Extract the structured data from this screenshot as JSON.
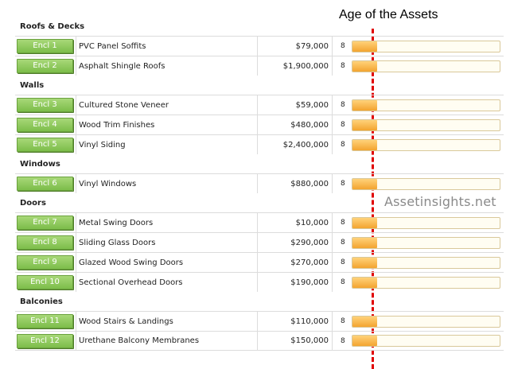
{
  "header": {
    "title": "Age of the Assets"
  },
  "watermark": "Assetinsights.net",
  "colors": {
    "button": "#7cbd4a",
    "bar": "#f3a430",
    "marker": "#e00000"
  },
  "sections": [
    {
      "name": "Roofs & Decks",
      "rows": [
        {
          "encl": "Encl 1",
          "name": "PVC Panel Soffits",
          "cost": "$79,000",
          "age": "8",
          "age_fraction": 0.17
        },
        {
          "encl": "Encl 2",
          "name": "Asphalt Shingle Roofs",
          "cost": "$1,900,000",
          "age": "8",
          "age_fraction": 0.17
        }
      ]
    },
    {
      "name": "Walls",
      "rows": [
        {
          "encl": "Encl 3",
          "name": "Cultured Stone Veneer",
          "cost": "$59,000",
          "age": "8",
          "age_fraction": 0.17
        },
        {
          "encl": "Encl 4",
          "name": "Wood Trim Finishes",
          "cost": "$480,000",
          "age": "8",
          "age_fraction": 0.17
        },
        {
          "encl": "Encl 5",
          "name": "Vinyl Siding",
          "cost": "$2,400,000",
          "age": "8",
          "age_fraction": 0.17
        }
      ]
    },
    {
      "name": "Windows",
      "rows": [
        {
          "encl": "Encl 6",
          "name": "Vinyl Windows",
          "cost": "$880,000",
          "age": "8",
          "age_fraction": 0.17
        }
      ]
    },
    {
      "name": "Doors",
      "rows": [
        {
          "encl": "Encl 7",
          "name": "Metal Swing Doors",
          "cost": "$10,000",
          "age": "8",
          "age_fraction": 0.17
        },
        {
          "encl": "Encl 8",
          "name": "Sliding Glass Doors",
          "cost": "$290,000",
          "age": "8",
          "age_fraction": 0.17
        },
        {
          "encl": "Encl 9",
          "name": "Glazed Wood Swing Doors",
          "cost": "$270,000",
          "age": "8",
          "age_fraction": 0.17
        },
        {
          "encl": "Encl 10",
          "name": "Sectional Overhead Doors",
          "cost": "$190,000",
          "age": "8",
          "age_fraction": 0.17
        }
      ]
    },
    {
      "name": "Balconies",
      "rows": [
        {
          "encl": "Encl 11",
          "name": "Wood Stairs & Landings",
          "cost": "$110,000",
          "age": "8",
          "age_fraction": 0.17
        },
        {
          "encl": "Encl 12",
          "name": "Urethane Balcony Membranes",
          "cost": "$150,000",
          "age": "8",
          "age_fraction": 0.17
        }
      ]
    }
  ]
}
